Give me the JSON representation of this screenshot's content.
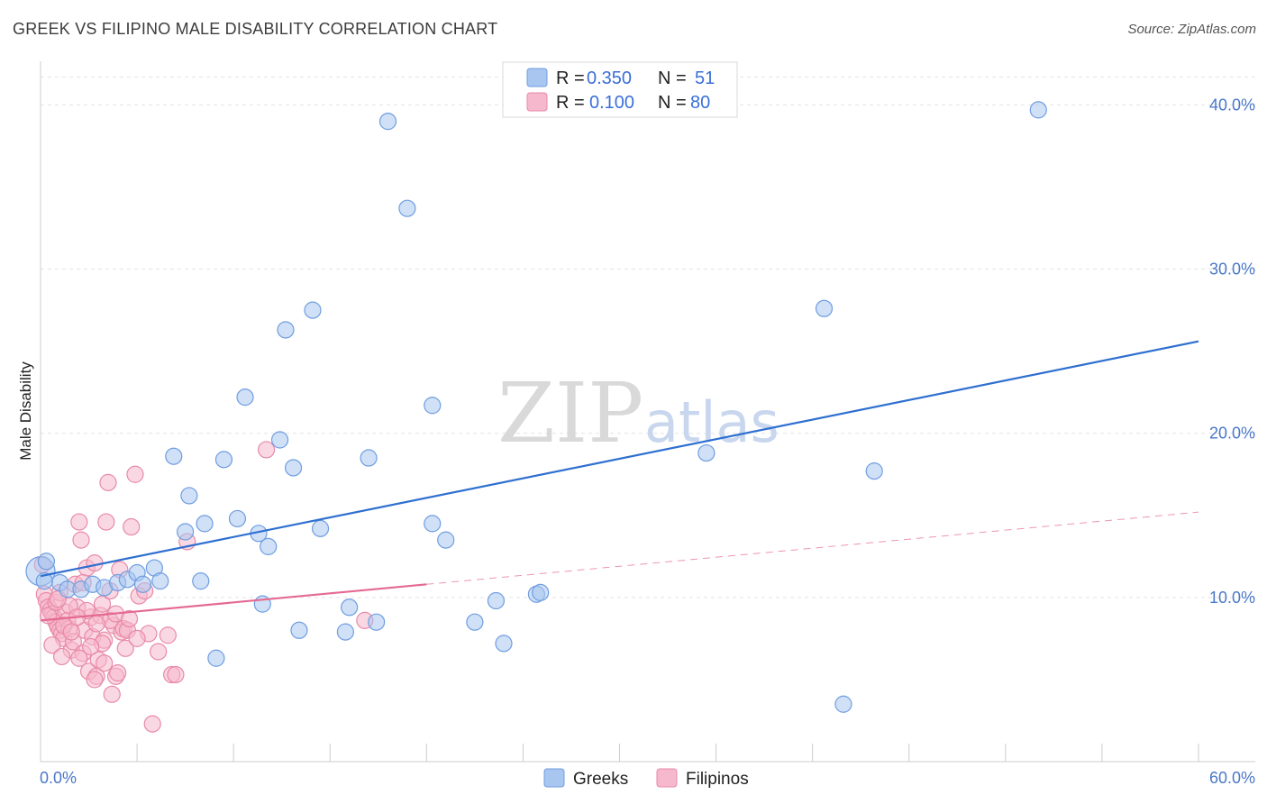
{
  "title": "GREEK VS FILIPINO MALE DISABILITY CORRELATION CHART",
  "source": "Source: ZipAtlas.com",
  "watermark": {
    "zip": "ZIP",
    "atlas": "atlas"
  },
  "legend": {
    "rows": [
      {
        "r_label": "R =",
        "r_value": "0.350",
        "n_label": "N =",
        "n_value": "51",
        "color": "#a8c6f0",
        "stroke": "#6f9de0"
      },
      {
        "r_label": "R =",
        "r_value": "0.100",
        "n_label": "N =",
        "n_value": "80",
        "color": "#f6b8cc",
        "stroke": "#e88aa8"
      }
    ]
  },
  "bottom_legend": [
    {
      "label": "Greeks",
      "color": "#a8c6f0",
      "stroke": "#6f9de0"
    },
    {
      "label": "Filipinos",
      "color": "#f6b8cc",
      "stroke": "#e88aa8"
    }
  ],
  "chart_data": {
    "type": "scatter",
    "title": "GREEK VS FILIPINO MALE DISABILITY CORRELATION CHART",
    "xlabel": "",
    "ylabel": "Male Disability",
    "xlim": [
      0,
      60
    ],
    "ylim": [
      0,
      42
    ],
    "x_tick_labels": [
      "0.0%",
      "60.0%"
    ],
    "y_ticks": [
      10,
      20,
      30,
      40
    ],
    "y_tick_labels": [
      "10.0%",
      "20.0%",
      "30.0%",
      "40.0%"
    ],
    "grid": true,
    "series": [
      {
        "name": "Greeks",
        "color": "#a8c6f0",
        "stroke": "#6f9de0",
        "trend": {
          "x": [
            0,
            60
          ],
          "y": [
            11.3,
            25.6
          ],
          "style": "solid",
          "color": "#2e6fd0"
        },
        "points": [
          [
            0.0,
            11.6
          ],
          [
            1.0,
            10.9
          ],
          [
            1.4,
            10.5
          ],
          [
            2.1,
            10.5
          ],
          [
            2.7,
            10.8
          ],
          [
            3.3,
            10.6
          ],
          [
            4.0,
            10.9
          ],
          [
            4.5,
            11.1
          ],
          [
            5.0,
            11.5
          ],
          [
            5.3,
            10.8
          ],
          [
            5.9,
            11.8
          ],
          [
            6.2,
            11.0
          ],
          [
            6.9,
            18.6
          ],
          [
            7.5,
            14.0
          ],
          [
            7.7,
            16.2
          ],
          [
            8.3,
            11.0
          ],
          [
            8.5,
            14.5
          ],
          [
            9.1,
            6.3
          ],
          [
            9.5,
            18.4
          ],
          [
            10.2,
            14.8
          ],
          [
            10.6,
            22.2
          ],
          [
            11.3,
            13.9
          ],
          [
            11.5,
            9.6
          ],
          [
            11.8,
            13.1
          ],
          [
            12.4,
            19.6
          ],
          [
            12.7,
            26.3
          ],
          [
            13.1,
            17.9
          ],
          [
            13.4,
            8.0
          ],
          [
            14.1,
            27.5
          ],
          [
            14.5,
            14.2
          ],
          [
            15.8,
            7.9
          ],
          [
            16.0,
            9.4
          ],
          [
            17.0,
            18.5
          ],
          [
            17.4,
            8.5
          ],
          [
            18.0,
            39.0
          ],
          [
            19.0,
            33.7
          ],
          [
            20.3,
            21.7
          ],
          [
            20.3,
            14.5
          ],
          [
            21.0,
            13.5
          ],
          [
            22.5,
            8.5
          ],
          [
            23.6,
            9.8
          ],
          [
            24.0,
            7.2
          ],
          [
            25.7,
            10.2
          ],
          [
            25.9,
            10.3
          ],
          [
            34.5,
            18.8
          ],
          [
            40.6,
            27.6
          ],
          [
            41.6,
            3.5
          ],
          [
            43.2,
            17.7
          ],
          [
            51.7,
            39.7
          ],
          [
            0.2,
            11.0
          ],
          [
            0.3,
            12.2
          ]
        ]
      },
      {
        "name": "Filipinos",
        "color": "#f6b8cc",
        "stroke": "#e88aa8",
        "trend": {
          "x": [
            0,
            20
          ],
          "y": [
            8.6,
            10.8
          ],
          "style": "solid",
          "color": "#e46a92",
          "extension": {
            "x": [
              20,
              60
            ],
            "y": [
              10.8,
              15.2
            ],
            "style": "dashed"
          }
        },
        "points": [
          [
            0.1,
            12.0
          ],
          [
            0.2,
            10.2
          ],
          [
            0.3,
            9.8
          ],
          [
            0.4,
            9.4
          ],
          [
            0.5,
            9.2
          ],
          [
            0.6,
            9.0
          ],
          [
            0.7,
            8.8
          ],
          [
            0.8,
            8.5
          ],
          [
            0.9,
            8.2
          ],
          [
            1.0,
            8.0
          ],
          [
            1.1,
            7.8
          ],
          [
            1.2,
            7.5
          ],
          [
            1.3,
            9.1
          ],
          [
            1.4,
            8.6
          ],
          [
            1.5,
            8.1
          ],
          [
            1.6,
            6.8
          ],
          [
            1.7,
            7.3
          ],
          [
            1.8,
            10.8
          ],
          [
            1.9,
            9.4
          ],
          [
            2.0,
            14.6
          ],
          [
            2.1,
            13.5
          ],
          [
            2.2,
            6.6
          ],
          [
            2.3,
            8.0
          ],
          [
            2.4,
            11.8
          ],
          [
            2.5,
            5.5
          ],
          [
            2.6,
            8.8
          ],
          [
            2.7,
            7.6
          ],
          [
            2.8,
            12.1
          ],
          [
            2.9,
            5.2
          ],
          [
            3.0,
            6.2
          ],
          [
            3.1,
            8.9
          ],
          [
            3.2,
            9.6
          ],
          [
            3.3,
            7.4
          ],
          [
            3.4,
            14.6
          ],
          [
            3.5,
            17.0
          ],
          [
            3.6,
            10.4
          ],
          [
            3.7,
            4.1
          ],
          [
            3.8,
            8.3
          ],
          [
            3.9,
            5.2
          ],
          [
            4.1,
            11.7
          ],
          [
            4.2,
            7.9
          ],
          [
            4.3,
            8.1
          ],
          [
            4.5,
            8.0
          ],
          [
            4.7,
            14.3
          ],
          [
            4.9,
            17.5
          ],
          [
            5.1,
            10.1
          ],
          [
            5.4,
            10.4
          ],
          [
            5.6,
            7.8
          ],
          [
            5.8,
            2.3
          ],
          [
            6.1,
            6.7
          ],
          [
            6.6,
            7.7
          ],
          [
            6.8,
            5.3
          ],
          [
            7.0,
            5.3
          ],
          [
            7.6,
            13.4
          ],
          [
            11.7,
            19.0
          ],
          [
            16.8,
            8.6
          ],
          [
            0.4,
            8.9
          ],
          [
            0.8,
            9.7
          ],
          [
            1.2,
            8.3
          ],
          [
            1.6,
            7.9
          ],
          [
            2.0,
            6.3
          ],
          [
            2.4,
            9.2
          ],
          [
            2.8,
            5.0
          ],
          [
            3.2,
            7.2
          ],
          [
            3.6,
            8.6
          ],
          [
            4.0,
            5.4
          ],
          [
            4.4,
            6.9
          ],
          [
            1.0,
            10.3
          ],
          [
            0.6,
            7.1
          ],
          [
            1.5,
            9.5
          ],
          [
            2.2,
            10.9
          ],
          [
            2.9,
            8.4
          ],
          [
            3.3,
            6.0
          ],
          [
            1.9,
            8.8
          ],
          [
            1.1,
            6.4
          ],
          [
            0.9,
            9.9
          ],
          [
            2.6,
            7.0
          ],
          [
            3.9,
            9.0
          ],
          [
            4.6,
            8.7
          ],
          [
            5.0,
            7.5
          ]
        ]
      }
    ]
  }
}
